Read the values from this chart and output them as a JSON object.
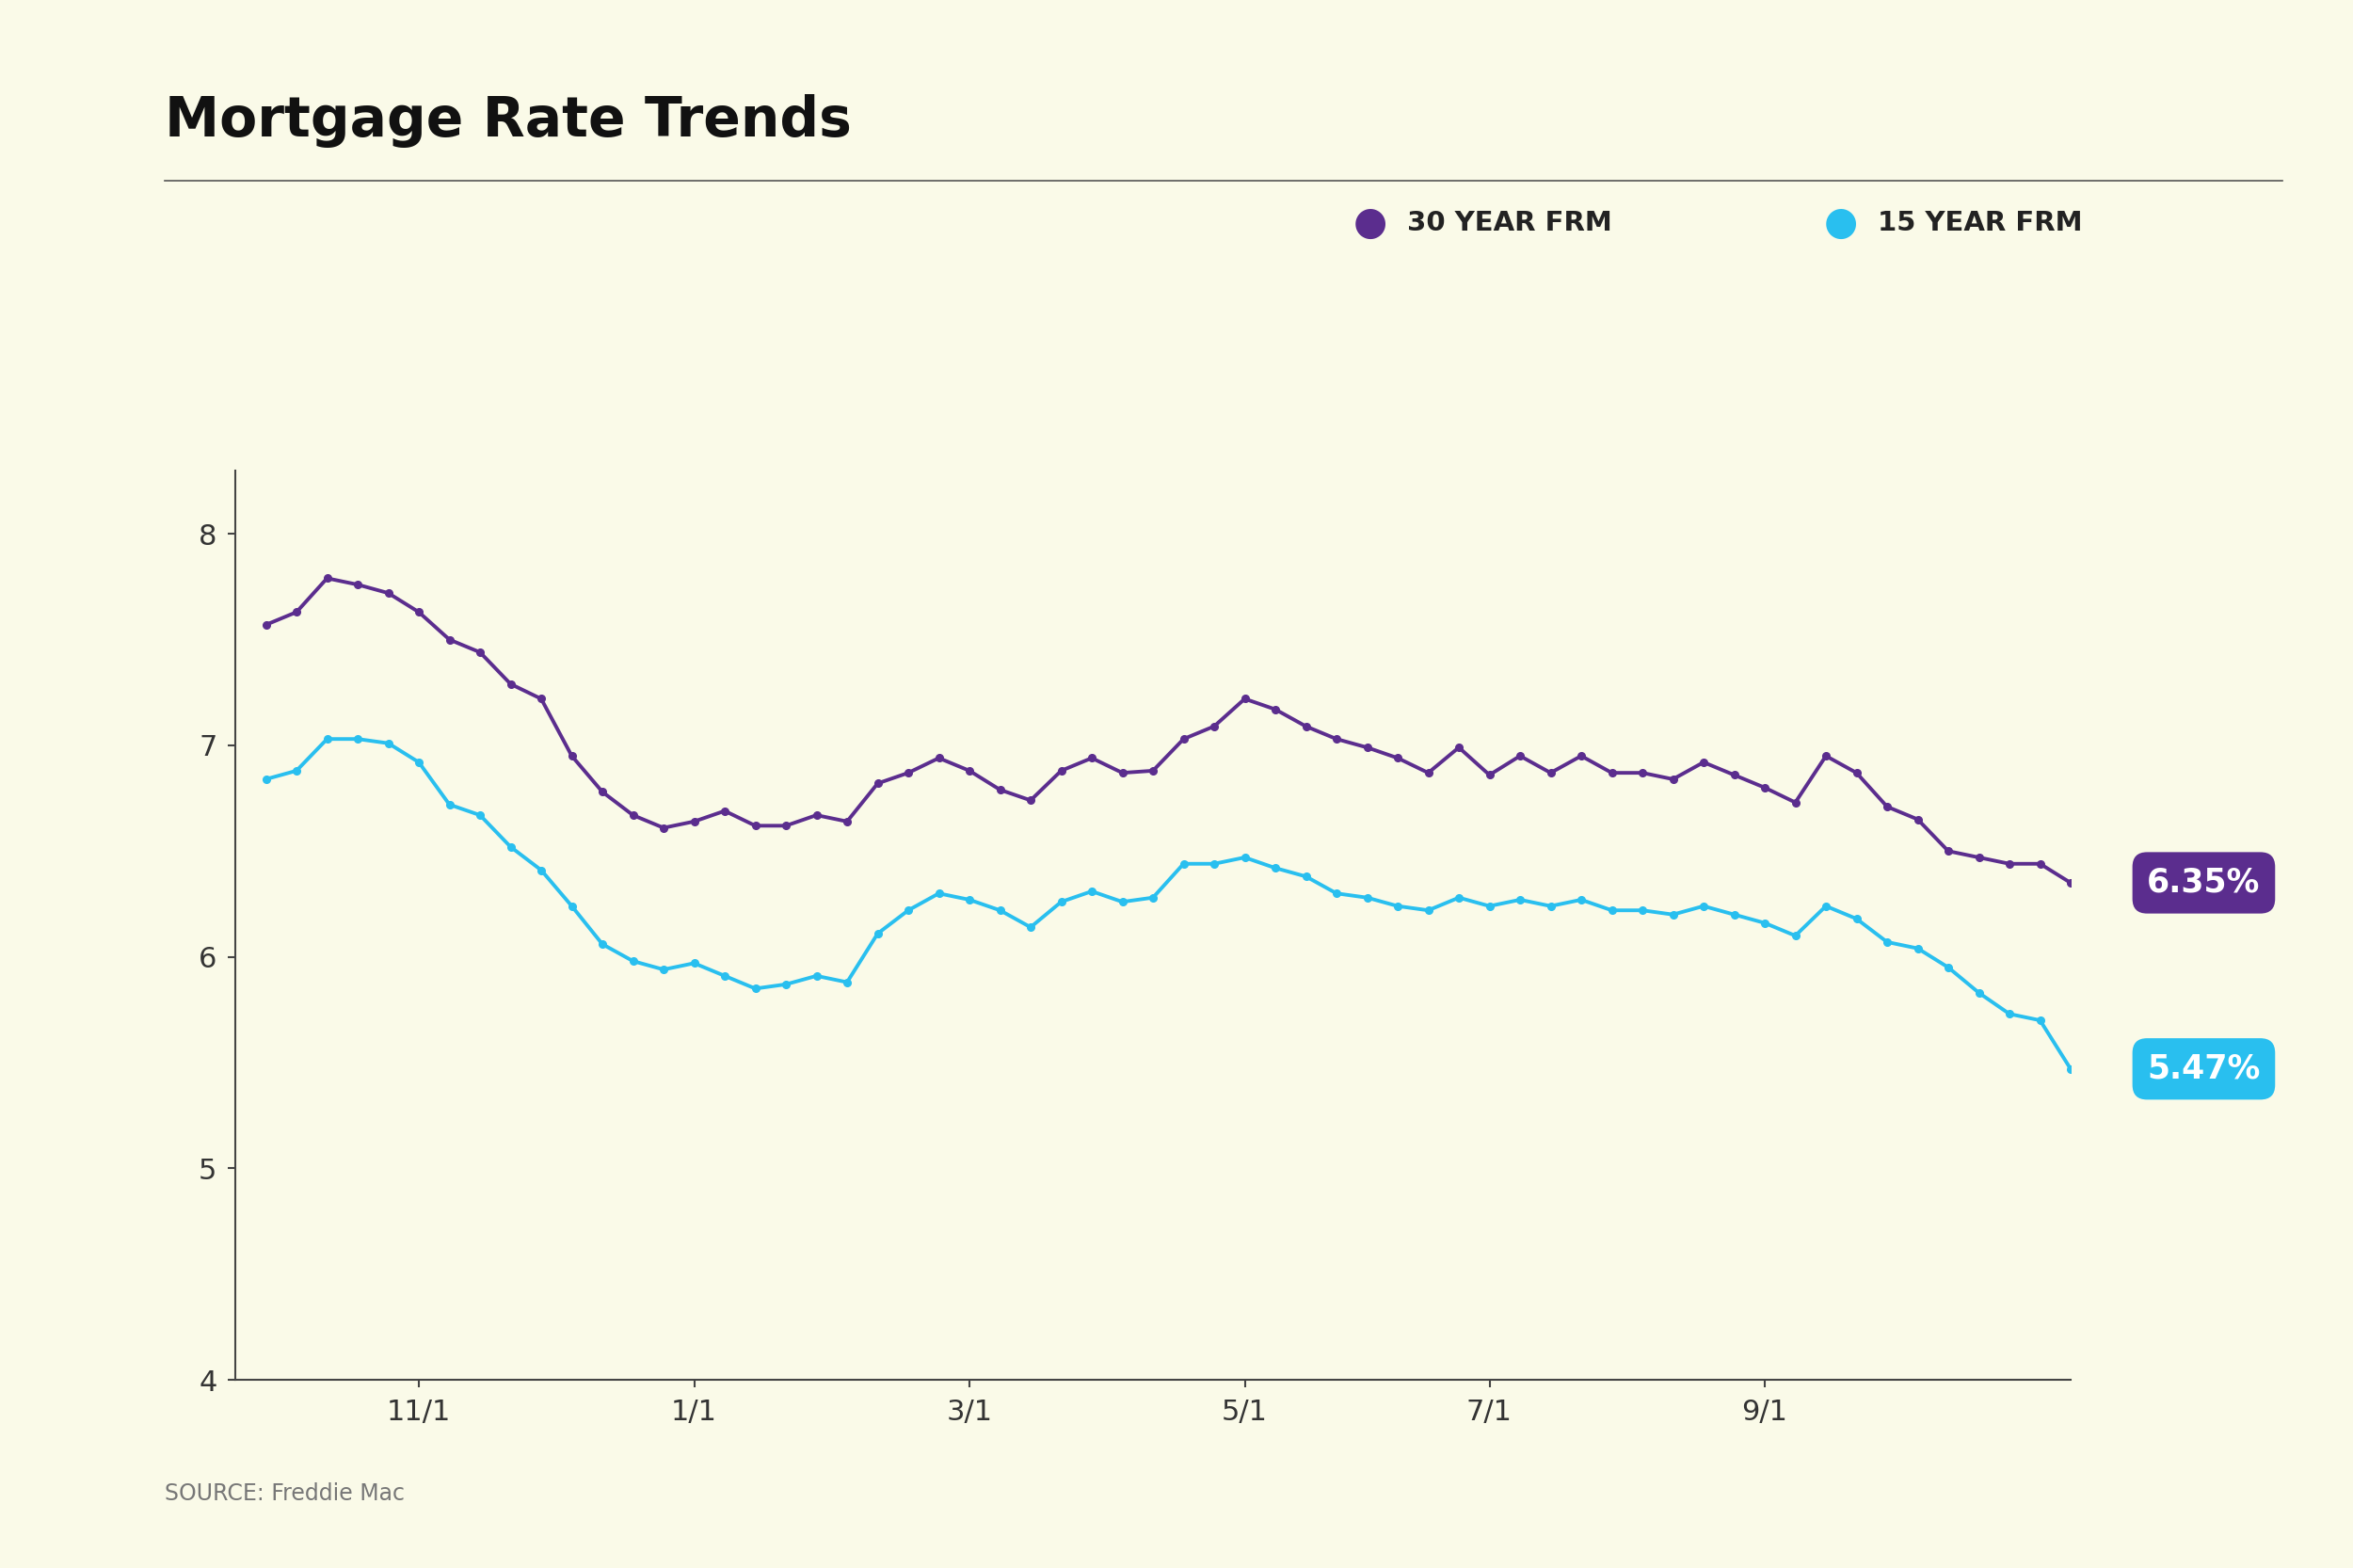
{
  "title": "Mortgage Rate Trends",
  "background_color": "#FAFAE8",
  "source_text": "SOURCE: Freddie Mac",
  "color_30yr": "#5B2D8E",
  "color_15yr": "#29BFEF",
  "label_30yr": "30 YEAR FRM",
  "label_15yr": "15 YEAR FRM",
  "final_30yr": "6.35%",
  "final_15yr": "5.47%",
  "ylim": [
    4,
    8.3
  ],
  "yticks": [
    4,
    5,
    6,
    7,
    8
  ],
  "xtick_labels": [
    "11/1",
    "1/1",
    "3/1",
    "5/1",
    "7/1",
    "9/1"
  ],
  "xtick_positions": [
    5,
    14,
    23,
    32,
    40,
    49
  ],
  "data_30yr": [
    7.57,
    7.63,
    7.79,
    7.76,
    7.72,
    7.63,
    7.5,
    7.44,
    7.29,
    7.22,
    6.95,
    6.78,
    6.67,
    6.61,
    6.64,
    6.69,
    6.62,
    6.62,
    6.67,
    6.64,
    6.82,
    6.87,
    6.94,
    6.88,
    6.79,
    6.74,
    6.88,
    6.94,
    6.87,
    6.88,
    7.03,
    7.09,
    7.22,
    7.17,
    7.09,
    7.03,
    6.99,
    6.94,
    6.87,
    6.99,
    6.86,
    6.95,
    6.87,
    6.95,
    6.87,
    6.87,
    6.84,
    6.92,
    6.86,
    6.8,
    6.73,
    6.95,
    6.87,
    6.71,
    6.65,
    6.5,
    6.47,
    6.44,
    6.44,
    6.35
  ],
  "data_15yr": [
    6.84,
    6.88,
    7.03,
    7.03,
    7.01,
    6.92,
    6.72,
    6.67,
    6.52,
    6.41,
    6.24,
    6.06,
    5.98,
    5.94,
    5.97,
    5.91,
    5.85,
    5.87,
    5.91,
    5.88,
    6.11,
    6.22,
    6.3,
    6.27,
    6.22,
    6.14,
    6.26,
    6.31,
    6.26,
    6.28,
    6.44,
    6.44,
    6.47,
    6.42,
    6.38,
    6.3,
    6.28,
    6.24,
    6.22,
    6.28,
    6.24,
    6.27,
    6.24,
    6.27,
    6.22,
    6.22,
    6.2,
    6.24,
    6.2,
    6.16,
    6.1,
    6.24,
    6.18,
    6.07,
    6.04,
    5.95,
    5.83,
    5.73,
    5.7,
    5.47
  ]
}
